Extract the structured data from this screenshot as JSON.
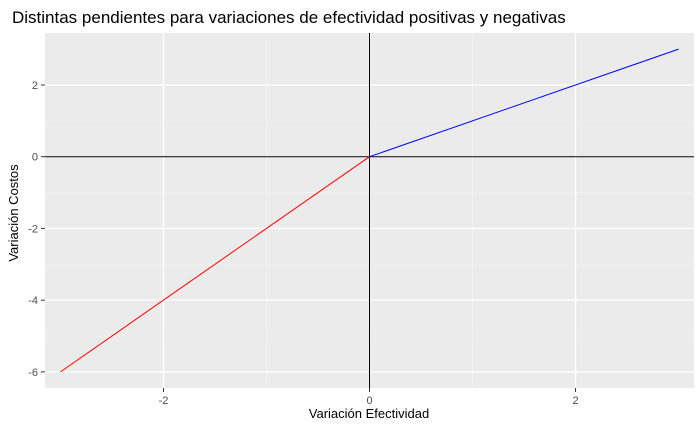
{
  "chart_data": {
    "type": "line",
    "title": "Distintas pendientes para variaciones de efectividad positivas y negativas",
    "xlabel": "Variación Efectividad",
    "ylabel": "Variación Costos",
    "xlim": [
      -3.15,
      3.15
    ],
    "ylim": [
      -6.45,
      3.45
    ],
    "x_ticks": [
      -2,
      0,
      2
    ],
    "y_ticks": [
      -6,
      -4,
      -2,
      0,
      2
    ],
    "x_tick_labels": [
      "-2",
      "0",
      "2"
    ],
    "y_tick_labels": [
      "-6",
      "-4",
      "-2",
      "0",
      "2"
    ],
    "grid": true,
    "legend": "none",
    "reference_lines": {
      "x": 0,
      "y": 0,
      "color": "#000000"
    },
    "series": [
      {
        "color": "#ff0000",
        "x": [
          -3,
          0
        ],
        "y": [
          -6,
          0
        ]
      },
      {
        "color": "#0000ff",
        "x": [
          0,
          3
        ],
        "y": [
          0,
          3
        ]
      }
    ]
  },
  "colors": {
    "panel_background": "#ebebeb",
    "grid_major": "#ffffff",
    "grid_minor": "#f2f2f2"
  }
}
